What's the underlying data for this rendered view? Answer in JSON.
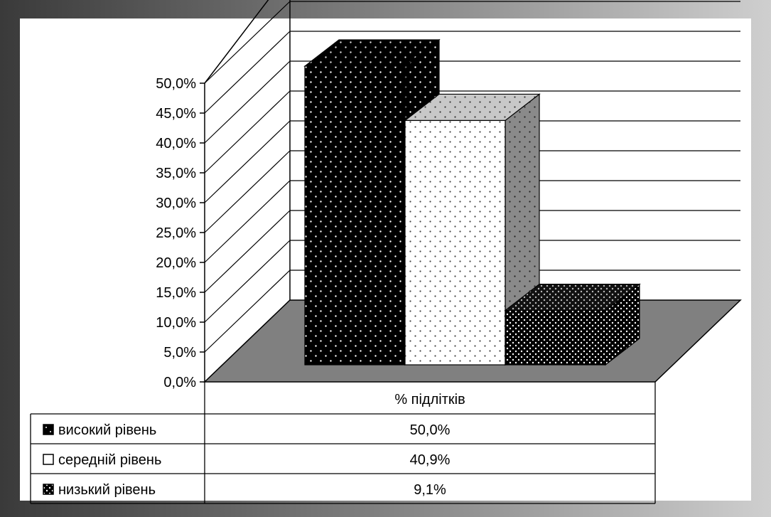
{
  "chart_data": {
    "type": "bar",
    "view": "3d",
    "categories": [
      "% підлітків"
    ],
    "series": [
      {
        "name": "високий рівень",
        "values": [
          50.0
        ],
        "label": "50,0%",
        "pattern": "dots-on-black"
      },
      {
        "name": "середній рівень",
        "values": [
          40.9
        ],
        "label": "40,9%",
        "pattern": "dots-on-white"
      },
      {
        "name": "низький рівень",
        "values": [
          9.1
        ],
        "label": "9,1%",
        "pattern": "dense-dots-on-black"
      }
    ],
    "y_ticks": [
      "0,0%",
      "5,0%",
      "10,0%",
      "15,0%",
      "20,0%",
      "25,0%",
      "30,0%",
      "35,0%",
      "40,0%",
      "45,0%",
      "50,0%"
    ],
    "ylim": [
      0,
      50
    ],
    "y_step": 5,
    "grid": true,
    "legend": "data-table"
  },
  "colors": {
    "frame_dark": "#3a3a3a",
    "frame_light": "#cfcfcf",
    "floor": "#808080",
    "background": "#ffffff",
    "mark": "#000000"
  }
}
